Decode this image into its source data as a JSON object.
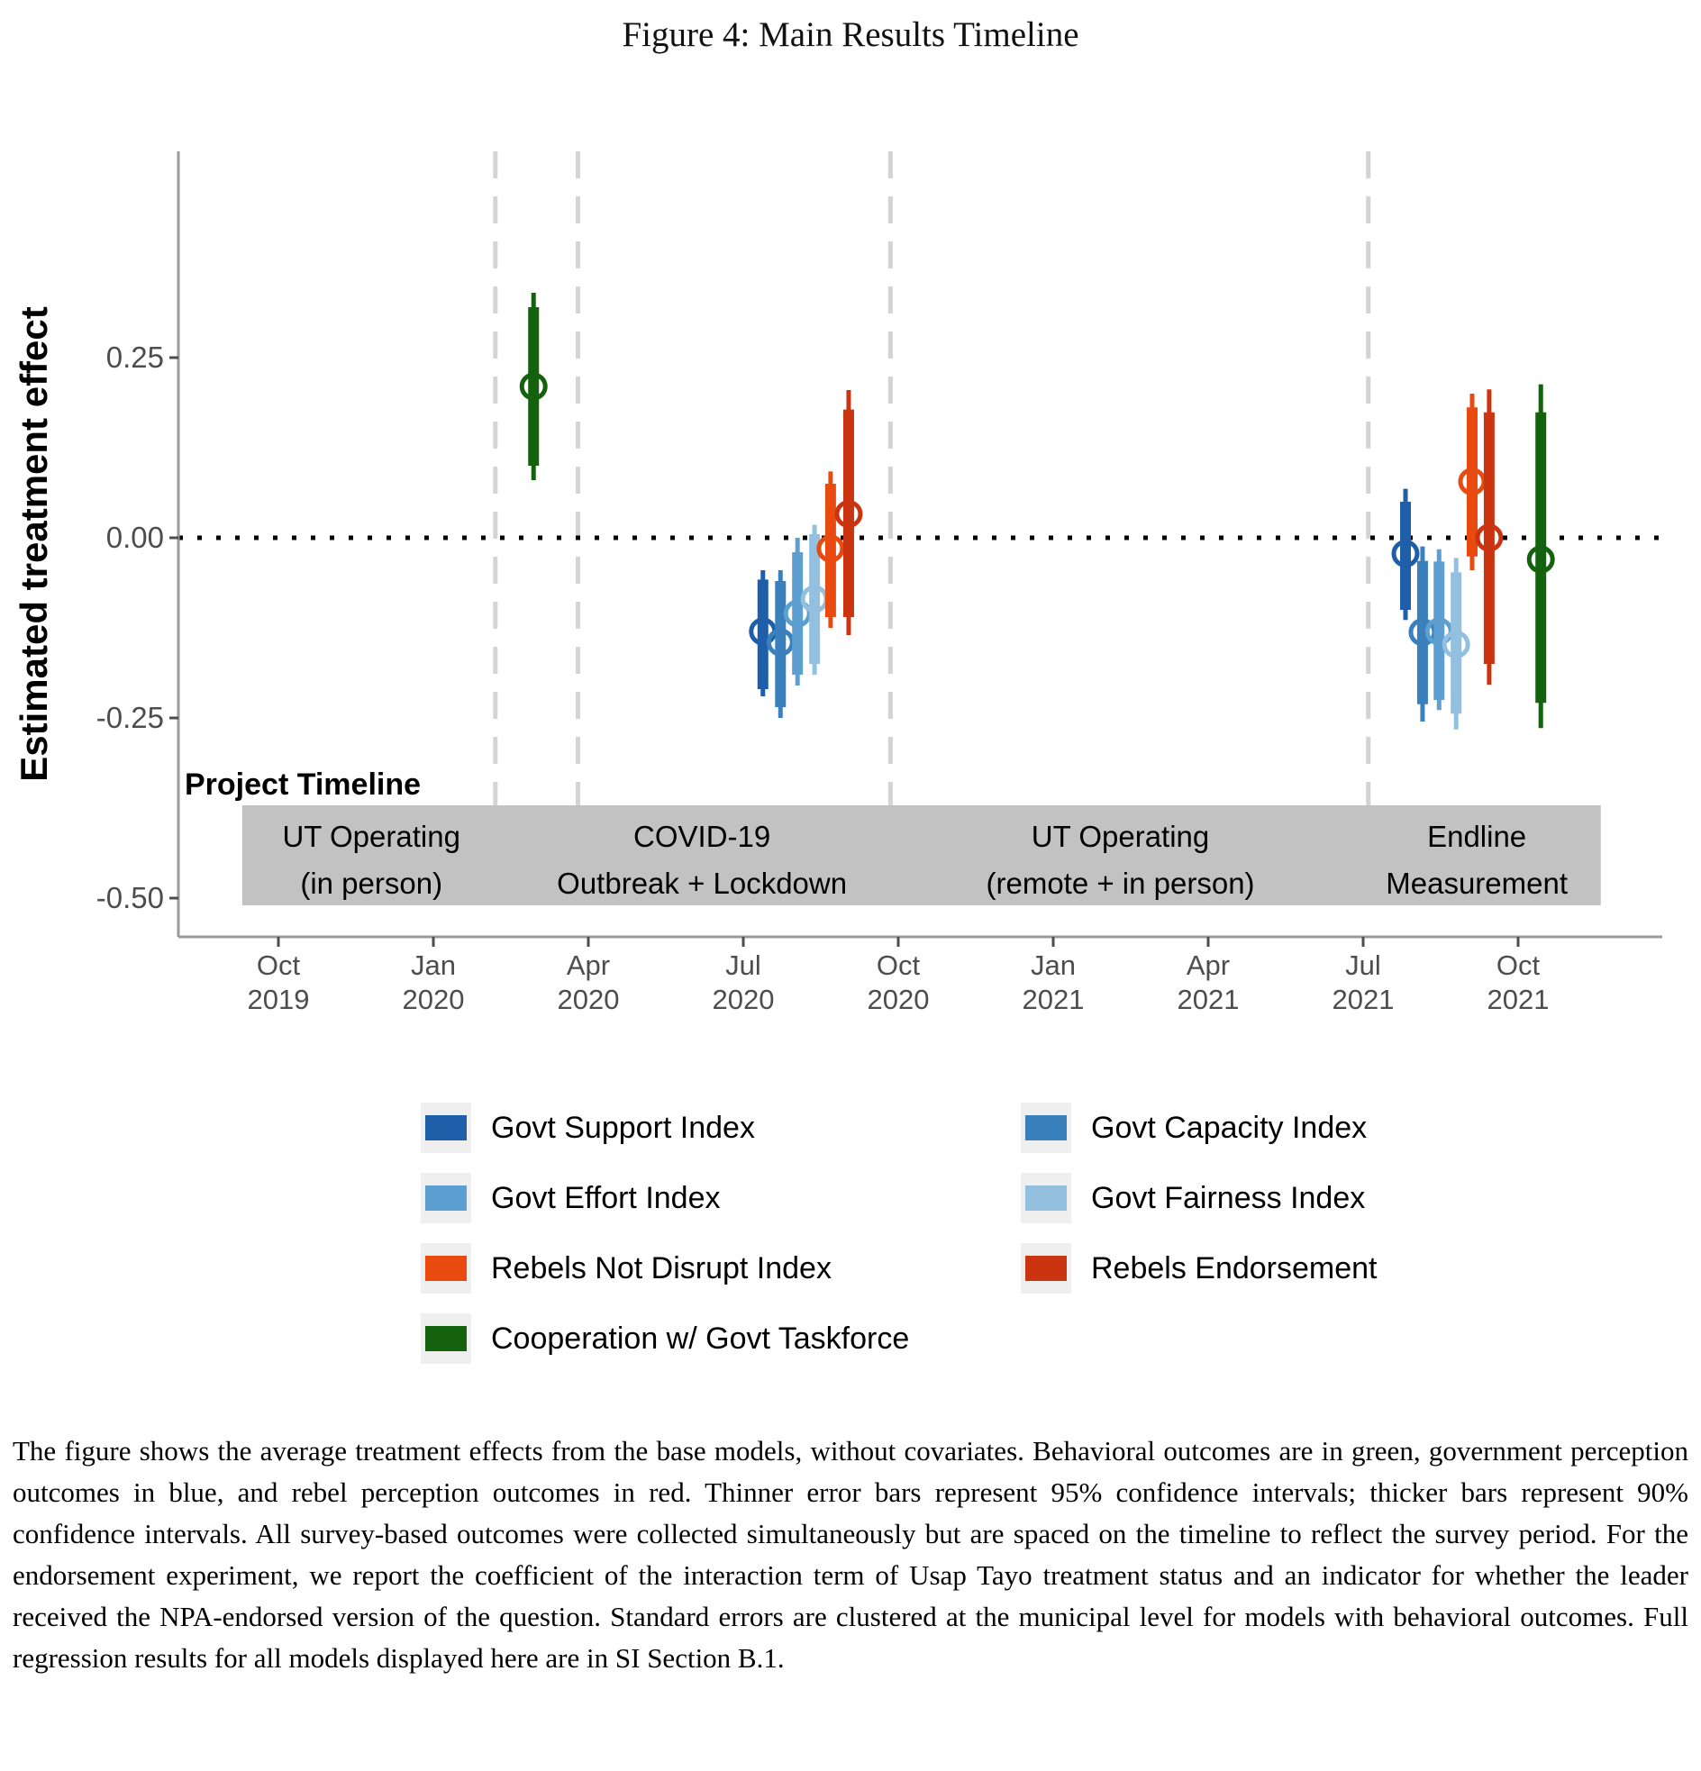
{
  "figure": {
    "title": "Figure 4: Main Results Timeline"
  },
  "chart": {
    "y_axis": {
      "title": "Estimated treatment effect",
      "ticks": [
        {
          "label": "0.25",
          "value": 0.25
        },
        {
          "label": "0.00",
          "value": 0.0
        },
        {
          "label": "-0.25",
          "value": -0.25
        },
        {
          "label": "-0.50",
          "value": -0.5
        }
      ]
    },
    "x_axis": {
      "ticks": [
        {
          "month": "Oct",
          "year": "2019",
          "m": 0
        },
        {
          "month": "Jan",
          "year": "2020",
          "m": 3
        },
        {
          "month": "Apr",
          "year": "2020",
          "m": 6
        },
        {
          "month": "Jul",
          "year": "2020",
          "m": 9
        },
        {
          "month": "Oct",
          "year": "2020",
          "m": 12
        },
        {
          "month": "Jan",
          "year": "2021",
          "m": 15
        },
        {
          "month": "Apr",
          "year": "2021",
          "m": 18
        },
        {
          "month": "Jul",
          "year": "2021",
          "m": 21
        },
        {
          "month": "Oct",
          "year": "2021",
          "m": 24
        }
      ]
    },
    "zero_line_value": 0,
    "timeline_band": {
      "heading": "Project Timeline",
      "band_start_m": -0.7,
      "band_end_m": 25.6,
      "boundaries_m": [
        4.2,
        5.8,
        11.85,
        21.1
      ],
      "phases": [
        {
          "line1": "UT Operating",
          "line2": "(in person)",
          "center_m": 1.8
        },
        {
          "line1": "COVID-19",
          "line2": "Outbreak + Lockdown",
          "center_m": 8.2
        },
        {
          "line1": "UT Operating",
          "line2": "(remote + in person)",
          "center_m": 16.3
        },
        {
          "line1": "Endline",
          "line2": "Measurement",
          "center_m": 23.2
        }
      ]
    }
  },
  "chart_data": {
    "type": "pointrange-timeline",
    "x_unit": "months_after_Oct_2019",
    "ylim": [
      -0.55,
      0.45
    ],
    "note": "thin bar = 95% CI, thick bar = 90% CI, open circle = point estimate",
    "colors": {
      "support": "#1F5FA9",
      "capacity": "#3A80BC",
      "effort": "#5C9FD0",
      "fairness": "#93C0DE",
      "notdisrupt": "#E84A10",
      "endorse": "#CB3410",
      "coop": "#14610E"
    },
    "points": [
      {
        "series": "Cooperation w/ Govt Taskforce",
        "key": "coop",
        "period": "Feb-Mar 2020",
        "x_m": 4.94,
        "estimate": 0.21,
        "ci90": [
          0.1,
          0.32
        ],
        "ci95": [
          0.08,
          0.34
        ]
      },
      {
        "series": "Govt Support Index",
        "key": "support",
        "period": "Aug 2020",
        "x_m": 9.38,
        "estimate": -0.13,
        "ci90": [
          -0.21,
          -0.058
        ],
        "ci95": [
          -0.22,
          -0.045
        ]
      },
      {
        "series": "Govt Capacity Index",
        "key": "capacity",
        "period": "Aug 2020",
        "x_m": 9.72,
        "estimate": -0.145,
        "ci90": [
          -0.235,
          -0.06
        ],
        "ci95": [
          -0.25,
          -0.045
        ]
      },
      {
        "series": "Govt Effort Index",
        "key": "effort",
        "period": "Aug 2020",
        "x_m": 10.05,
        "estimate": -0.105,
        "ci90": [
          -0.19,
          -0.02
        ],
        "ci95": [
          -0.205,
          0.0
        ]
      },
      {
        "series": "Govt Fairness Index",
        "key": "fairness",
        "period": "Aug-Sep 2020",
        "x_m": 10.38,
        "estimate": -0.085,
        "ci90": [
          -0.175,
          0.005
        ],
        "ci95": [
          -0.19,
          0.018
        ]
      },
      {
        "series": "Rebels Not Disrupt Index",
        "key": "notdisrupt",
        "period": "Sep 2020",
        "x_m": 10.69,
        "estimate": -0.015,
        "ci90": [
          -0.11,
          0.075
        ],
        "ci95": [
          -0.125,
          0.092
        ]
      },
      {
        "series": "Rebels Endorsement",
        "key": "endorse",
        "period": "Sep 2020",
        "x_m": 11.04,
        "estimate": 0.033,
        "ci90": [
          -0.11,
          0.178
        ],
        "ci95": [
          -0.135,
          0.205
        ]
      },
      {
        "series": "Govt Support Index",
        "key": "support",
        "period": "Aug 2021",
        "x_m": 21.82,
        "estimate": -0.022,
        "ci90": [
          -0.1,
          0.05
        ],
        "ci95": [
          -0.114,
          0.068
        ]
      },
      {
        "series": "Govt Capacity Index",
        "key": "capacity",
        "period": "Aug 2021",
        "x_m": 22.15,
        "estimate": -0.131,
        "ci90": [
          -0.231,
          -0.032
        ],
        "ci95": [
          -0.255,
          -0.012
        ]
      },
      {
        "series": "Govt Effort Index",
        "key": "effort",
        "period": "Aug-Sep 2021",
        "x_m": 22.47,
        "estimate": -0.13,
        "ci90": [
          -0.225,
          -0.033
        ],
        "ci95": [
          -0.239,
          -0.016
        ]
      },
      {
        "series": "Govt Fairness Index",
        "key": "fairness",
        "period": "Sep 2021",
        "x_m": 22.8,
        "estimate": -0.148,
        "ci90": [
          -0.244,
          -0.048
        ],
        "ci95": [
          -0.266,
          -0.028
        ]
      },
      {
        "series": "Rebels Not Disrupt Index",
        "key": "notdisrupt",
        "period": "Sep 2021",
        "x_m": 23.11,
        "estimate": 0.078,
        "ci90": [
          -0.026,
          0.181
        ],
        "ci95": [
          -0.045,
          0.2
        ]
      },
      {
        "series": "Rebels Endorsement",
        "key": "endorse",
        "period": "Sep 2021",
        "x_m": 23.44,
        "estimate": 0.0,
        "ci90": [
          -0.175,
          0.174
        ],
        "ci95": [
          -0.204,
          0.206
        ]
      },
      {
        "series": "Cooperation w/ Govt Taskforce",
        "key": "coop",
        "period": "Oct 2021",
        "x_m": 24.44,
        "estimate": -0.03,
        "ci90": [
          -0.229,
          0.174
        ],
        "ci95": [
          -0.264,
          0.213
        ]
      }
    ]
  },
  "legend": {
    "items": [
      {
        "label": "Govt Support Index",
        "key": "support"
      },
      {
        "label": "Govt Capacity Index",
        "key": "capacity"
      },
      {
        "label": "Govt Effort Index",
        "key": "effort"
      },
      {
        "label": "Govt Fairness Index",
        "key": "fairness"
      },
      {
        "label": "Rebels Not Disrupt Index",
        "key": "notdisrupt"
      },
      {
        "label": "Rebels Endorsement",
        "key": "endorse"
      },
      {
        "label": "Cooperation w/ Govt Taskforce",
        "key": "coop"
      }
    ]
  },
  "caption": "The figure shows the average treatment effects from the base models, without covariates. Behavioral outcomes are in green, government perception outcomes in blue, and rebel perception outcomes in red. Thinner error bars represent 95% confidence intervals; thicker bars represent 90% confidence intervals. All survey-based outcomes were collected simultaneously but are spaced on the timeline to reflect the survey period. For the endorsement experiment, we report the coefficient of the interaction term of Usap Tayo treatment status and an indicator for whether the leader received the NPA-endorsed version of the question. Standard errors are clustered at the municipal level for models with behavioral outcomes. Full regression results for all models displayed here are in SI Section B.1."
}
